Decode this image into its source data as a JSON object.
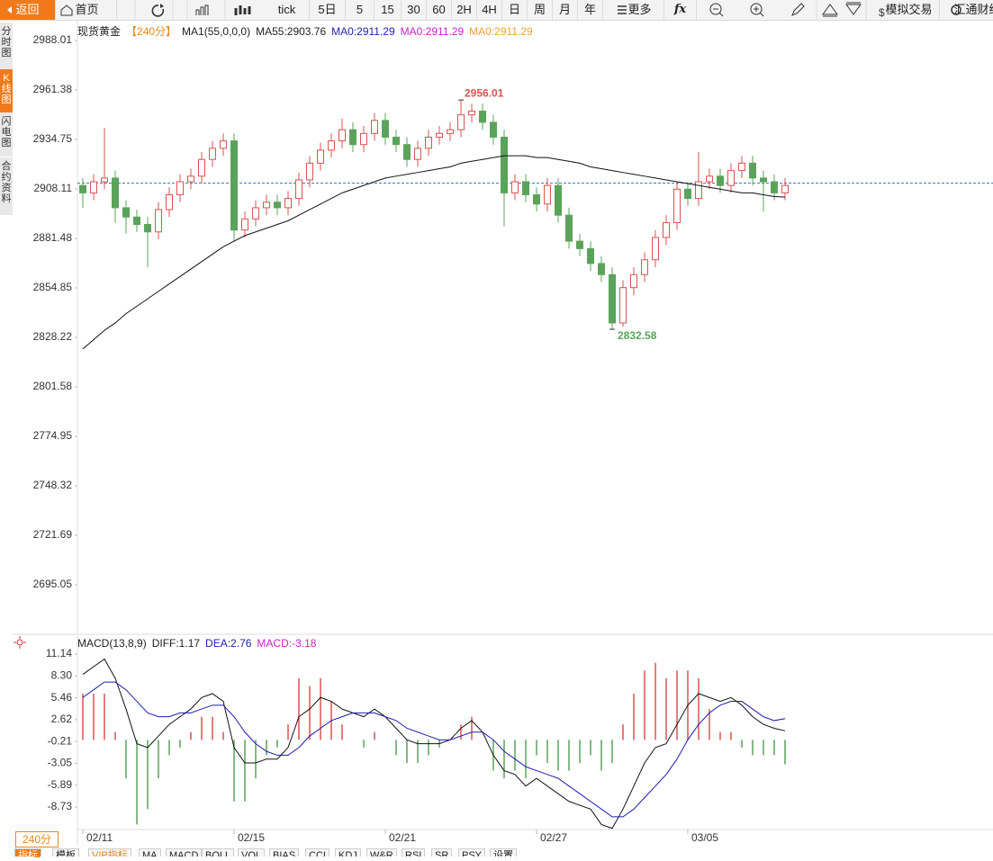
{
  "toolbar": {
    "items": [
      "返回",
      "首页",
      "tick",
      "5日",
      "5",
      "15",
      "30",
      "60",
      "2H",
      "4H",
      "日",
      "周",
      "月",
      "年",
      "更多",
      "fx",
      "模拟交易",
      "汇通财经"
    ]
  },
  "sidebar": [
    "分时图",
    "K线图",
    "闪电图",
    "合约资料"
  ],
  "period_button": "240分 ▲",
  "bottom_tabs": [
    "指标",
    "模板",
    "VIP指标",
    "MA",
    "MACD",
    "BOLL",
    "VOL",
    "BIAS",
    "CCI",
    "KDJ",
    "W&R",
    "RSI",
    "SR",
    "PSY",
    "设置"
  ],
  "chart_data": [
    {
      "type": "candlestick",
      "legend": [
        {
          "text": "现货黄金",
          "color": "#222"
        },
        {
          "text": "【240分】",
          "color": "#e8861a"
        },
        {
          "text": "MA1(55,0,0,0)",
          "color": "#222"
        },
        {
          "text": "MA55:2903.76",
          "color": "#222"
        },
        {
          "text": "MA0:2911.29",
          "color": "#2020b0"
        },
        {
          "text": "MA0:2911.29",
          "color": "#d020d0"
        },
        {
          "text": "MA0:2911.29",
          "color": "#f0a030"
        }
      ],
      "categories": [
        "02/11",
        null,
        null,
        null,
        null,
        null,
        null,
        null,
        null,
        null,
        null,
        null,
        null,
        null,
        "02/15",
        null,
        null,
        null,
        null,
        null,
        null,
        null,
        null,
        null,
        null,
        null,
        null,
        null,
        "02/21",
        null,
        null,
        null,
        null,
        null,
        null,
        null,
        null,
        null,
        null,
        null,
        null,
        null,
        "02/27",
        null,
        null,
        null,
        null,
        null,
        null,
        null,
        null,
        null,
        null,
        null,
        null,
        null,
        "03/05",
        null,
        null,
        null,
        null,
        null,
        null,
        null,
        null,
        null
      ],
      "open": [
        2910,
        2906,
        2912,
        2914,
        2898,
        2893,
        2889,
        2885,
        2897,
        2905,
        2912,
        2915,
        2924,
        2930,
        2934,
        2886,
        2892,
        2898,
        2901,
        2898,
        2903,
        2913,
        2922,
        2929,
        2934,
        2940,
        2932,
        2938,
        2945,
        2936,
        2932,
        2924,
        2930,
        2936,
        2938,
        2940,
        2948,
        2950,
        2944,
        2936,
        2906,
        2912,
        2905,
        2900,
        2910,
        2894,
        2880,
        2876,
        2868,
        2862,
        2836,
        2855,
        2862,
        2870,
        2882,
        2890,
        2908,
        2903,
        2912,
        2915,
        2910,
        2918,
        2922,
        2914,
        2912,
        2906
      ],
      "high": [
        2914,
        2916,
        2941,
        2918,
        2902,
        2897,
        2893,
        2901,
        2909,
        2916,
        2919,
        2928,
        2934,
        2938,
        2938,
        2896,
        2902,
        2905,
        2905,
        2907,
        2917,
        2926,
        2933,
        2938,
        2946,
        2944,
        2942,
        2949,
        2949,
        2940,
        2936,
        2934,
        2940,
        2942,
        2944,
        2956.01,
        2954,
        2954,
        2948,
        2940,
        2916,
        2916,
        2909,
        2914,
        2914,
        2898,
        2884,
        2880,
        2872,
        2866,
        2859,
        2866,
        2874,
        2886,
        2894,
        2912,
        2912,
        2928,
        2919,
        2919,
        2922,
        2926,
        2926,
        2918,
        2916,
        2914
      ],
      "low": [
        2898,
        2902,
        2908,
        2890,
        2884,
        2885,
        2866,
        2881,
        2893,
        2901,
        2908,
        2911,
        2920,
        2926,
        2880,
        2882,
        2888,
        2894,
        2894,
        2894,
        2899,
        2909,
        2918,
        2925,
        2930,
        2928,
        2928,
        2934,
        2932,
        2928,
        2920,
        2920,
        2926,
        2932,
        2934,
        2936,
        2944,
        2940,
        2932,
        2888,
        2902,
        2901,
        2896,
        2896,
        2890,
        2876,
        2872,
        2864,
        2858,
        2832.58,
        2834,
        2851,
        2858,
        2866,
        2878,
        2886,
        2899,
        2899,
        2908,
        2906,
        2906,
        2914,
        2910,
        2896,
        2902,
        2902
      ],
      "close": [
        2906,
        2912,
        2914,
        2898,
        2893,
        2889,
        2885,
        2897,
        2905,
        2912,
        2915,
        2924,
        2930,
        2934,
        2886,
        2892,
        2898,
        2901,
        2898,
        2903,
        2913,
        2922,
        2929,
        2934,
        2940,
        2932,
        2938,
        2945,
        2936,
        2932,
        2924,
        2930,
        2936,
        2938,
        2940,
        2948,
        2950,
        2944,
        2936,
        2906,
        2912,
        2905,
        2900,
        2910,
        2894,
        2880,
        2876,
        2868,
        2862,
        2836,
        2855,
        2862,
        2870,
        2882,
        2890,
        2908,
        2903,
        2912,
        2915,
        2910,
        2918,
        2922,
        2914,
        2912,
        2906,
        2910
      ],
      "ma": {
        "color": "#111111",
        "values": [
          2822,
          2827,
          2832,
          2836,
          2841,
          2845,
          2849,
          2853,
          2857,
          2861,
          2865,
          2869,
          2873,
          2877,
          2880,
          2883,
          2885,
          2887,
          2889,
          2891,
          2894,
          2897,
          2900,
          2903,
          2906,
          2908,
          2910,
          2912,
          2914,
          2915,
          2916,
          2917,
          2918,
          2919,
          2920,
          2922,
          2923,
          2924,
          2925,
          2926,
          2926,
          2926,
          2925,
          2925,
          2924,
          2923,
          2922,
          2920,
          2919,
          2918,
          2917,
          2916,
          2915,
          2914,
          2913,
          2912,
          2911,
          2910,
          2909,
          2908,
          2907,
          2906,
          2906,
          2905,
          2904,
          2903.76
        ]
      },
      "last_price": 2911.29,
      "last_price_color": "#3a7cc0",
      "up_color": "#d9534f",
      "down_color": "#5ba35b",
      "ylim": [
        2669.4,
        2998.2
      ],
      "yticks": [
        2988.01,
        2961.38,
        2934.75,
        2908.11,
        2881.48,
        2854.85,
        2828.22,
        2801.58,
        2774.95,
        2748.32,
        2721.69,
        2695.05
      ],
      "grid": false
    },
    {
      "type": "macd",
      "legend": [
        {
          "text": "MACD(13,8,9)",
          "color": "#222"
        },
        {
          "text": "DIFF:1.17",
          "color": "#222"
        },
        {
          "text": "DEA:2.76",
          "color": "#2020b0"
        },
        {
          "text": "MACD:-3.18",
          "color": "#d020d0"
        }
      ],
      "diff": {
        "color": "#111111",
        "values": [
          8.5,
          9.5,
          10.5,
          8,
          4,
          -0.5,
          -1,
          0.5,
          2,
          3,
          4,
          5.5,
          6,
          5,
          -1,
          -3,
          -3,
          -2.5,
          -2.5,
          -1,
          3,
          4,
          5.5,
          5,
          4,
          3.5,
          3,
          4,
          3,
          1.5,
          0,
          -0.5,
          -0.5,
          -0.5,
          0,
          1.5,
          2.5,
          1,
          -2,
          -4,
          -4.5,
          -6,
          -5,
          -6,
          -7,
          -8,
          -8.5,
          -9,
          -11,
          -11.5,
          -9,
          -6,
          -3,
          -1,
          -0.5,
          2,
          4.5,
          6,
          5.5,
          5,
          5.5,
          4.5,
          3,
          2,
          1.5,
          1.17
        ]
      },
      "dea": {
        "color": "#1c1cb0",
        "values": [
          5.5,
          6.5,
          7.5,
          7.5,
          6.5,
          5,
          3.5,
          3,
          3,
          3.5,
          3.5,
          4,
          4.5,
          4.5,
          3,
          1,
          -0.5,
          -1.5,
          -2,
          -2,
          -1,
          0.5,
          1.5,
          2.5,
          3,
          3.5,
          3.5,
          3.5,
          3,
          2.5,
          1.5,
          1,
          0.5,
          0,
          0,
          0.5,
          1,
          1,
          0,
          -1.5,
          -2.5,
          -3.5,
          -4,
          -4.5,
          -5,
          -6,
          -7,
          -8,
          -9,
          -10,
          -10,
          -9,
          -7.5,
          -6,
          -4.5,
          -2.5,
          0,
          2,
          3.5,
          4.5,
          5,
          5,
          4,
          3,
          2.5,
          2.76
        ]
      },
      "hist": {
        "up_color": "#d9534f",
        "down_color": "#5ba35b",
        "values": [
          6,
          6,
          6,
          1,
          -5,
          -11,
          -9,
          -5,
          -2,
          -1,
          1,
          3,
          3,
          1,
          -8,
          -8,
          -5,
          -2,
          -1,
          2,
          8,
          7,
          8,
          5,
          2,
          0,
          -1,
          1,
          0,
          -2,
          -3,
          -3,
          -2,
          -1,
          0,
          2,
          3,
          0,
          -4,
          -5,
          -4,
          -5,
          -2,
          -3,
          -4,
          -4,
          -3,
          -2,
          -4,
          -3,
          2,
          6,
          9,
          10,
          8,
          9,
          9,
          8,
          4,
          1,
          1,
          -1,
          -2,
          -2,
          -2,
          -3.18
        ]
      },
      "ylim": [
        -12.0,
        13.36
      ],
      "yticks": [
        11.14,
        {
          "value": 8.3,
          "label": "8.30"
        },
        5.46,
        2.62,
        -0.21,
        -3.05,
        -5.89,
        -8.73
      ],
      "grid": false
    }
  ]
}
